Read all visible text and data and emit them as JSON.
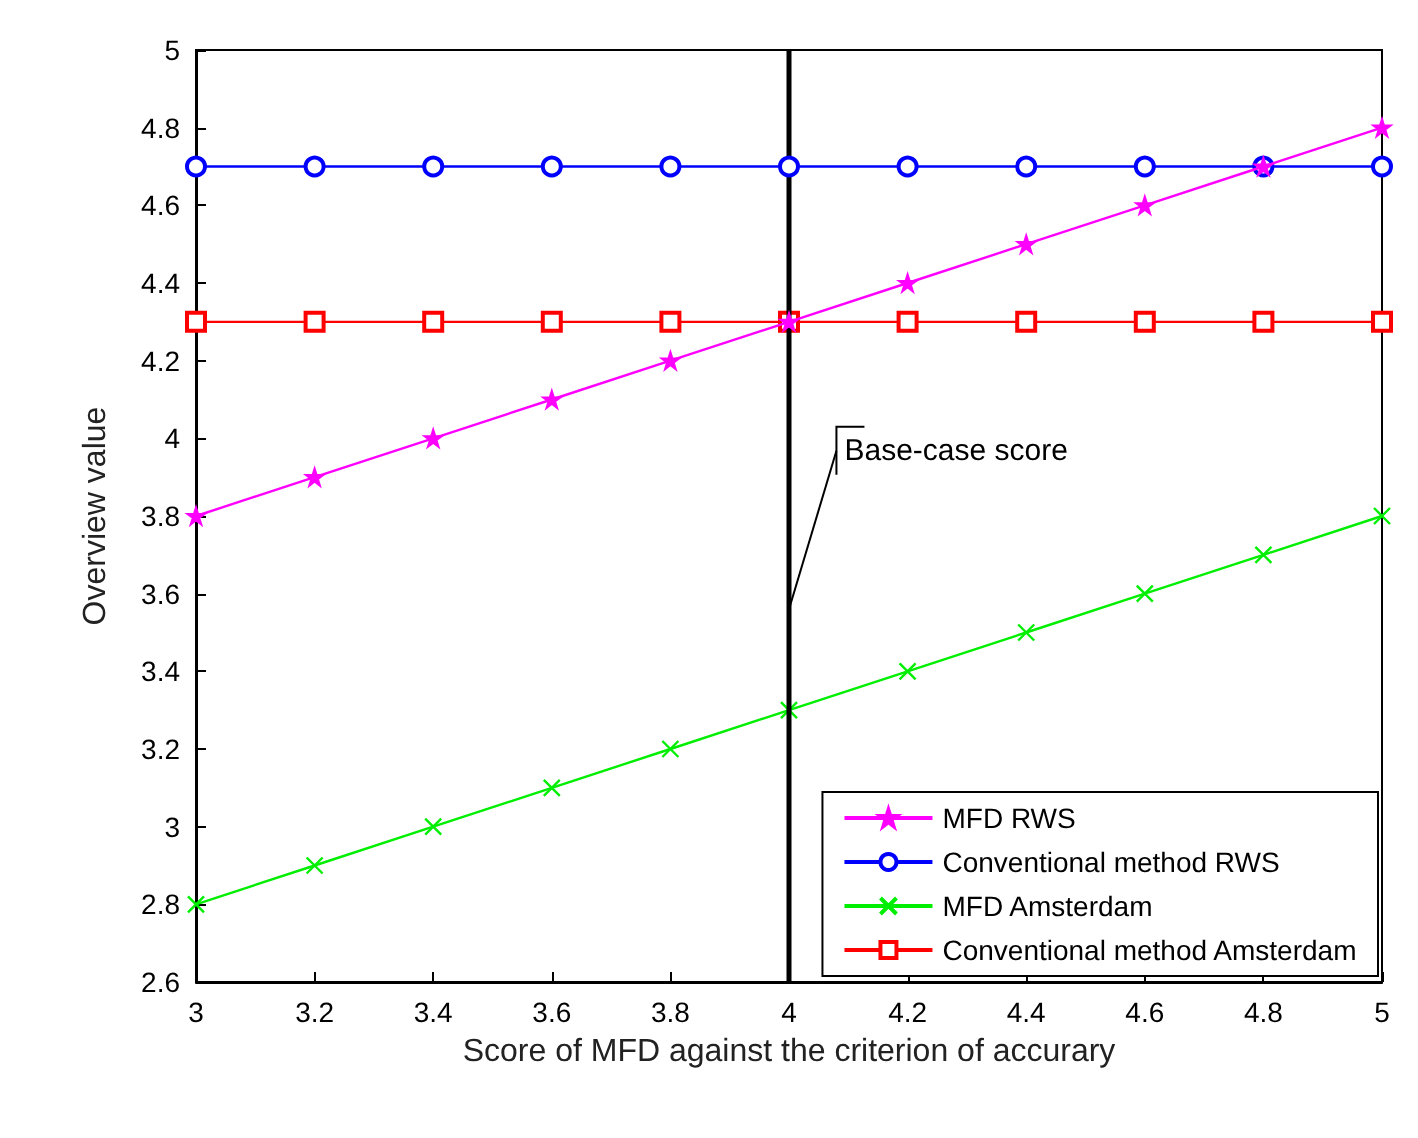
{
  "chart_data": {
    "type": "line",
    "xlabel": "Score of MFD against the criterion of accurary",
    "ylabel": "Overview value",
    "x": [
      3,
      3.2,
      3.4,
      3.6,
      3.8,
      4,
      4.2,
      4.4,
      4.6,
      4.8,
      5
    ],
    "series": [
      {
        "name": "MFD RWS",
        "color": "#ff00ff",
        "marker": "star",
        "values": [
          3.8,
          3.9,
          4.0,
          4.1,
          4.2,
          4.3,
          4.4,
          4.5,
          4.6,
          4.7,
          4.8
        ]
      },
      {
        "name": "Conventional method RWS",
        "color": "#0000ff",
        "marker": "circle",
        "values": [
          4.7,
          4.7,
          4.7,
          4.7,
          4.7,
          4.7,
          4.7,
          4.7,
          4.7,
          4.7,
          4.7
        ]
      },
      {
        "name": "MFD Amsterdam",
        "color": "#00ee00",
        "marker": "cross",
        "values": [
          2.8,
          2.9,
          3.0,
          3.1,
          3.2,
          3.3,
          3.4,
          3.5,
          3.6,
          3.7,
          3.8
        ]
      },
      {
        "name": "Conventional method Amsterdam",
        "color": "#ff0000",
        "marker": "square",
        "values": [
          4.3,
          4.3,
          4.3,
          4.3,
          4.3,
          4.3,
          4.3,
          4.3,
          4.3,
          4.3,
          4.3
        ]
      }
    ],
    "xlim": [
      3,
      5
    ],
    "xticks": [
      3,
      3.2,
      3.4,
      3.6,
      3.8,
      4,
      4.2,
      4.4,
      4.6,
      4.8,
      5
    ],
    "ylim": [
      2.6,
      5
    ],
    "yticks": [
      2.6,
      2.8,
      3,
      3.2,
      3.4,
      3.6,
      3.8,
      4,
      4.2,
      4.4,
      4.6,
      4.8,
      5
    ],
    "ref_lines": [
      {
        "axis": "x",
        "value": 4,
        "label": "Base-case score",
        "color": "#000000"
      }
    ],
    "grid": false,
    "legend": "bottom right",
    "line_style": "solid"
  }
}
